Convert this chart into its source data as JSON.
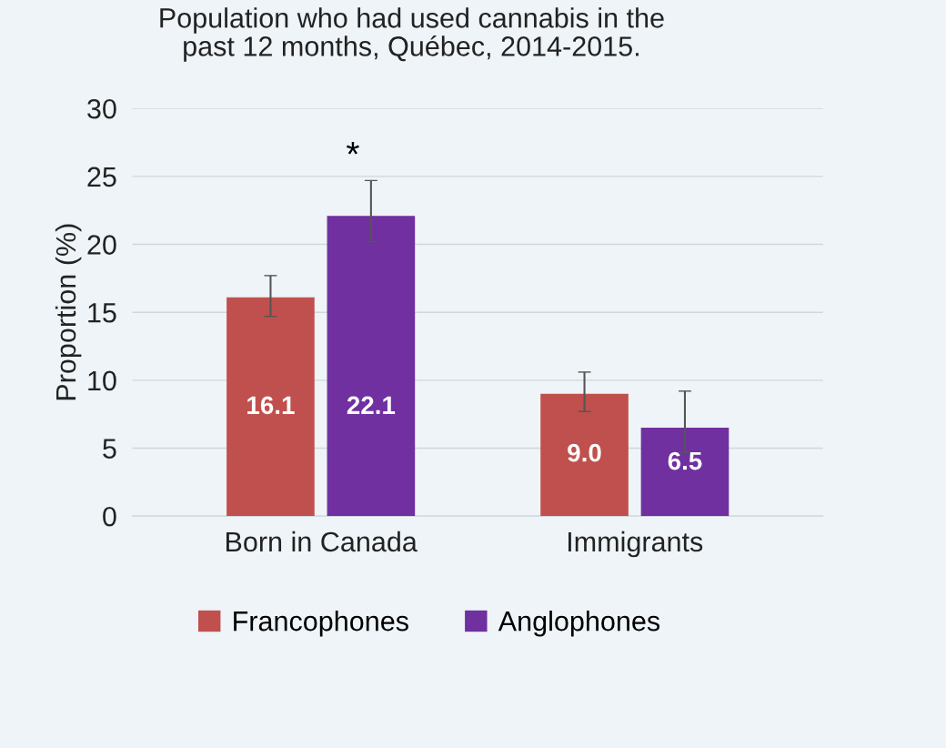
{
  "chart_data": {
    "type": "bar",
    "title": "Population who had used cannabis in the\npast 12 months, Québec, 2014-2015.",
    "ylabel": "Proportion (%)",
    "categories": [
      "Born in Canada",
      "Immigrants"
    ],
    "series": [
      {
        "name": "Francophones",
        "color": "#c0504d",
        "values": [
          16.1,
          9.0
        ],
        "errors": [
          [
            14.7,
            17.7
          ],
          [
            7.7,
            10.6
          ]
        ],
        "value_labels": [
          "16.1",
          "9.0"
        ]
      },
      {
        "name": "Anglophones",
        "color": "#7030a0",
        "values": [
          22.1,
          6.5
        ],
        "errors": [
          [
            20.2,
            24.7
          ],
          [
            4.7,
            9.2
          ]
        ],
        "value_labels": [
          "22.1",
          "6.5"
        ]
      }
    ],
    "ylim": [
      0,
      30
    ],
    "yticks": [
      0,
      5,
      10,
      15,
      20,
      25,
      30
    ],
    "grid": "y",
    "legend": "bottom",
    "annotations": [
      "*"
    ]
  }
}
